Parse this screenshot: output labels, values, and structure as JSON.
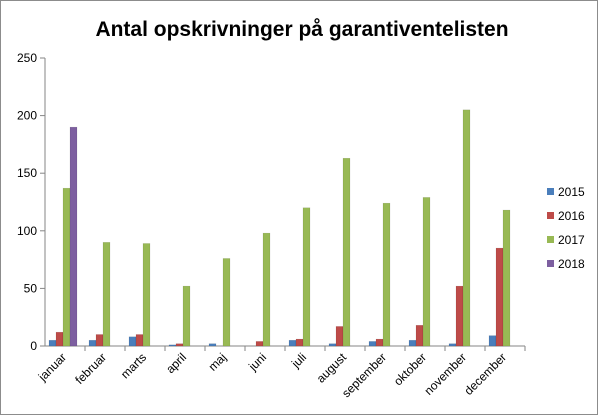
{
  "chart_data": {
    "type": "bar",
    "title": "Antal opskrivninger på garantiventelisten",
    "xlabel": "",
    "ylabel": "",
    "ylim": [
      0,
      250
    ],
    "yticks": [
      0,
      50,
      100,
      150,
      200,
      250
    ],
    "grid": false,
    "legend_position": "right",
    "categories": [
      "januar",
      "februar",
      "marts",
      "april",
      "maj",
      "juni",
      "juli",
      "august",
      "september",
      "oktober",
      "november",
      "december"
    ],
    "series": [
      {
        "name": "2015",
        "color": "#4a7ebb",
        "values": [
          5,
          5,
          8,
          1,
          2,
          0,
          5,
          2,
          4,
          5,
          2,
          9
        ]
      },
      {
        "name": "2016",
        "color": "#be4b48",
        "values": [
          12,
          10,
          10,
          2,
          0,
          4,
          6,
          17,
          6,
          18,
          52,
          85
        ]
      },
      {
        "name": "2017",
        "color": "#98b954",
        "values": [
          137,
          90,
          89,
          52,
          76,
          98,
          120,
          163,
          124,
          129,
          205,
          118
        ]
      },
      {
        "name": "2018",
        "color": "#7d5fa0",
        "values": [
          190,
          null,
          null,
          null,
          null,
          null,
          null,
          null,
          null,
          null,
          null,
          null
        ]
      }
    ]
  }
}
